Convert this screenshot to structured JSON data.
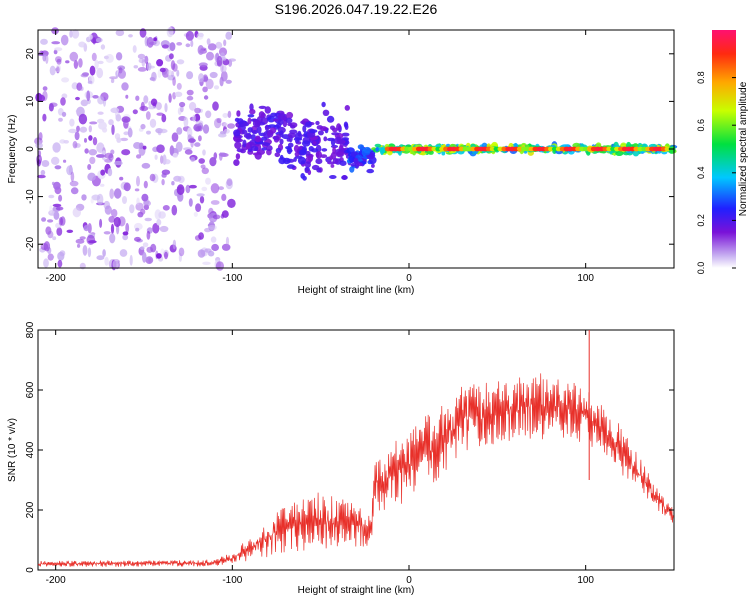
{
  "title": "S196.2026.047.19.22.E26",
  "chart_data": [
    {
      "type": "heatmap",
      "name": "spectrogram",
      "xlabel": "Height of straight line (km)",
      "ylabel": "Frequency (Hz)",
      "xlim": [
        -210,
        150
      ],
      "ylim": [
        -25,
        25
      ],
      "xticks": [
        "-200",
        "-100",
        "0",
        "100"
      ],
      "yticks": [
        "20",
        "10",
        "0",
        "-10",
        "-20"
      ],
      "tone_segments": [
        {
          "x_start": -98,
          "x_end": -70,
          "freq_center": 3,
          "freq_spread": 8,
          "amplitude": 0.2
        },
        {
          "x_start": -70,
          "x_end": -34,
          "freq_center": 1,
          "freq_spread": 9,
          "amplitude": 0.2
        },
        {
          "x_start": -34,
          "x_end": -20,
          "freq_center": -2,
          "freq_spread": 3,
          "amplitude": 0.35
        },
        {
          "x_start": -20,
          "x_end": 150,
          "freq_center": 0,
          "freq_spread": 1,
          "amplitude": 0.95
        }
      ],
      "noise_region": {
        "x_start": -210,
        "x_end": -100,
        "amplitude": 0.12
      },
      "colorbar": {
        "label": "Normalized spectral amplitude",
        "range": [
          0,
          1
        ],
        "ticks": [
          "0.0",
          "0.2",
          "0.4",
          "0.6",
          "0.8"
        ]
      }
    },
    {
      "type": "line",
      "name": "snr",
      "xlabel": "Height of straight line (km)",
      "ylabel": "SNR (10 * v/v)",
      "xlim": [
        -210,
        150
      ],
      "ylim": [
        0,
        800
      ],
      "xticks": [
        "-200",
        "-100",
        "0",
        "100"
      ],
      "yticks": [
        "800",
        "600",
        "400",
        "200",
        "0"
      ],
      "color": "#e8302a",
      "envelope": {
        "x": [
          -210,
          -110,
          -100,
          -90,
          -80,
          -70,
          -60,
          -50,
          -40,
          -30,
          -21,
          -20,
          -10,
          0,
          10,
          20,
          30,
          40,
          50,
          60,
          70,
          80,
          90,
          100,
          110,
          120,
          130,
          140,
          150
        ],
        "low": [
          10,
          12,
          20,
          30,
          40,
          55,
          60,
          65,
          70,
          75,
          80,
          180,
          200,
          230,
          270,
          320,
          380,
          400,
          420,
          430,
          430,
          440,
          440,
          420,
          380,
          320,
          260,
          200,
          150
        ],
        "high": [
          30,
          35,
          60,
          110,
          180,
          220,
          250,
          260,
          240,
          220,
          200,
          400,
          420,
          460,
          520,
          560,
          620,
          620,
          640,
          640,
          660,
          650,
          640,
          600,
          560,
          480,
          380,
          280,
          200
        ]
      },
      "spike": {
        "x": 102,
        "y": 800
      }
    }
  ]
}
